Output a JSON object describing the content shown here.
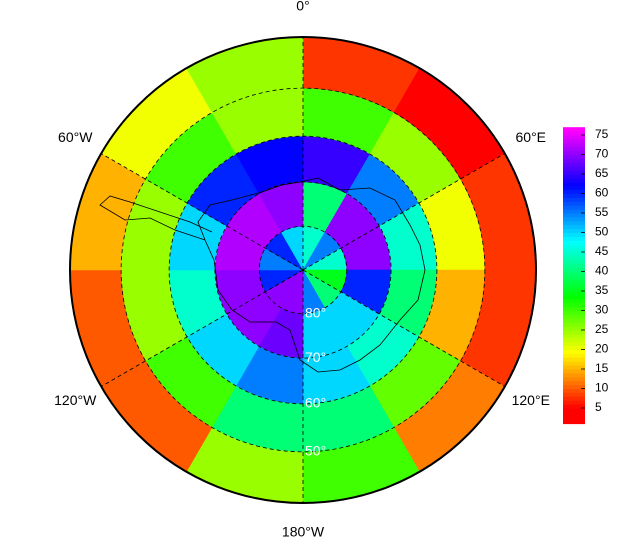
{
  "chart_data": {
    "type": "polar-grid",
    "colormap": "rainbow",
    "latlim": [
      90,
      40
    ],
    "lat_edges": [
      90,
      80,
      70,
      60,
      50,
      40
    ],
    "lon_edges": [
      0,
      30,
      60,
      90,
      120,
      150,
      180,
      210,
      240,
      270,
      300,
      330,
      360
    ],
    "values": [
      [
        45,
        40,
        65,
        30,
        8
      ],
      [
        55,
        70,
        55,
        25,
        5
      ],
      [
        45,
        70,
        45,
        20,
        8
      ],
      [
        35,
        60,
        40,
        15,
        8
      ],
      [
        40,
        50,
        45,
        28,
        12
      ],
      [
        55,
        50,
        50,
        40,
        30
      ],
      [
        70,
        68,
        55,
        40,
        25
      ],
      [
        70,
        70,
        50,
        30,
        10
      ],
      [
        60,
        70,
        45,
        25,
        10
      ],
      [
        55,
        72,
        50,
        25,
        15
      ],
      [
        60,
        72,
        60,
        30,
        20
      ],
      [
        50,
        70,
        62,
        25,
        25
      ]
    ],
    "lon_ticks": [
      {
        "value": 0,
        "label": "0°"
      },
      {
        "value": 60,
        "label": "60°E"
      },
      {
        "value": 120,
        "label": "120°E"
      },
      {
        "value": 180,
        "label": "180°W"
      },
      {
        "value": 240,
        "label": "120°W"
      },
      {
        "value": 300,
        "label": "60°W"
      }
    ],
    "lat_ticks": [
      {
        "value": 80,
        "label": "80°"
      },
      {
        "value": 70,
        "label": "70°"
      },
      {
        "value": 60,
        "label": "60°"
      },
      {
        "value": 50,
        "label": "50°"
      }
    ],
    "colorbar": {
      "lim": [
        1,
        77
      ],
      "ticks": [
        5,
        10,
        15,
        20,
        25,
        30,
        35,
        40,
        45,
        50,
        55,
        60,
        65,
        70,
        75
      ]
    }
  }
}
